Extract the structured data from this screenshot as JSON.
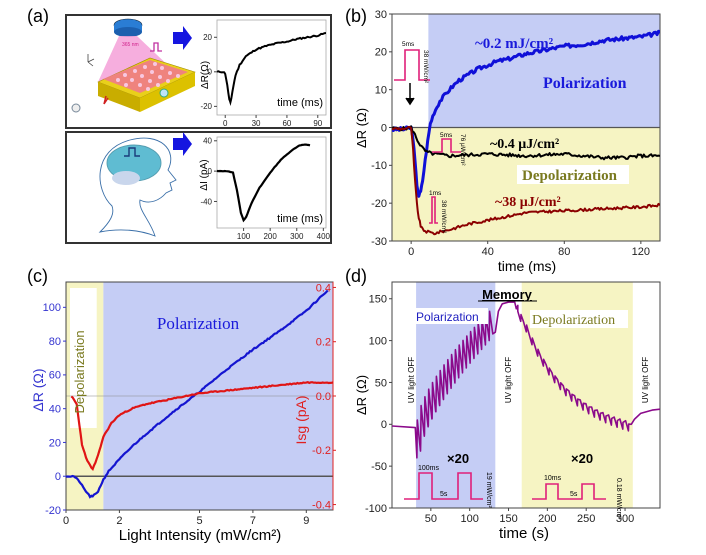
{
  "figure": {
    "panel_labels": [
      "(a)",
      "(b)",
      "(c)",
      "(d)"
    ]
  },
  "chart_data": [
    {
      "panel": "a-top",
      "type": "line",
      "title": "",
      "xlabel": "time (ms)",
      "ylabel": "ΔR(Ω)",
      "xlim": [
        -8,
        98
      ],
      "ylim": [
        -25,
        30
      ],
      "xticks": [
        0,
        30,
        60,
        90
      ],
      "yticks": [
        -20,
        0,
        20
      ],
      "illustration": "device-with-uv-pulse",
      "illustration_label": "365 nm",
      "series": [
        {
          "name": "response",
          "color": "#000000",
          "x": [
            -8,
            -2,
            0,
            2,
            4,
            5,
            6,
            8,
            10,
            14,
            20,
            30,
            40,
            50,
            60,
            70,
            80,
            90,
            98
          ],
          "y": [
            0,
            0,
            -1,
            -8,
            -16,
            -18,
            -15,
            -8,
            -2,
            4,
            9,
            13,
            15,
            16.5,
            17.5,
            19,
            20,
            21,
            22.5
          ]
        }
      ]
    },
    {
      "panel": "a-bottom",
      "type": "line",
      "title": "",
      "xlabel": "time (ms)",
      "ylabel": "ΔI (pA)",
      "xlim": [
        0,
        410
      ],
      "ylim": [
        -75,
        45
      ],
      "xticks": [
        100,
        200,
        300,
        400
      ],
      "yticks": [
        -40,
        0,
        40
      ],
      "illustration": "human-head-brain-pulse",
      "series": [
        {
          "name": "response",
          "color": "#000000",
          "x": [
            0,
            40,
            60,
            75,
            90,
            100,
            110,
            130,
            160,
            200,
            240,
            280,
            310,
            330,
            350
          ],
          "y": [
            0,
            0,
            -2,
            -25,
            -55,
            -65,
            -60,
            -42,
            -22,
            -2,
            15,
            27,
            34,
            35,
            34
          ]
        }
      ]
    },
    {
      "panel": "b",
      "type": "line",
      "title": "",
      "xlabel": "time (ms)",
      "ylabel": "ΔR (Ω)",
      "xlim": [
        -10,
        130
      ],
      "ylim": [
        -30,
        30
      ],
      "xticks": [
        0,
        40,
        80,
        120
      ],
      "yticks": [
        -30,
        -20,
        -10,
        0,
        10,
        20,
        30
      ],
      "regions": [
        {
          "label": "Polarization",
          "color": "#c5cdf5",
          "x_from": 9,
          "y_from": 0,
          "y_to": 30
        },
        {
          "label": "Depolarization",
          "color": "#f6f4c3",
          "y_from": -30,
          "y_to": 0
        }
      ],
      "annotations": [
        {
          "text": "~0.2 mJ/cm²",
          "color": "#1a1adb"
        },
        {
          "text": "Polarization",
          "color": "#1a1adb"
        },
        {
          "text": "~0.4 μJ/cm²",
          "color": "#000000"
        },
        {
          "text": "Depolarization",
          "color": "#7a7a20"
        },
        {
          "text": "~38 μJ/cm²",
          "color": "#8b0000"
        }
      ],
      "pulses": [
        {
          "width": "5ms",
          "intensity": "38 mW/cm²"
        },
        {
          "width": "5ms",
          "intensity": "76 μW/cm²"
        },
        {
          "width": "1ms",
          "intensity": "38 mW/cm²"
        }
      ],
      "series": [
        {
          "name": "~0.2 mJ/cm²",
          "color": "#1010d8",
          "x": [
            -10,
            -4,
            0,
            1,
            2,
            3,
            4,
            5,
            6,
            8,
            10,
            12,
            15,
            20,
            25,
            30,
            35,
            40,
            45,
            50,
            60,
            70,
            80,
            90,
            100,
            110,
            120,
            130
          ],
          "y": [
            -0.5,
            -0.5,
            0,
            -3,
            -9,
            -15,
            -18,
            -17,
            -14,
            -6,
            1,
            4,
            7,
            10,
            12.5,
            14,
            15.5,
            16.5,
            17.5,
            18,
            19.5,
            20.5,
            21.5,
            22,
            23,
            23.5,
            24,
            25
          ]
        },
        {
          "name": "~0.4 μJ/cm²",
          "color": "#000000",
          "x": [
            -10,
            -4,
            0,
            2,
            4,
            6,
            8,
            12,
            20,
            40,
            60,
            80,
            100,
            110,
            120,
            130
          ],
          "y": [
            -0.3,
            -0.3,
            0,
            -2,
            -4,
            -5.5,
            -6.5,
            -7,
            -7.5,
            -7,
            -7.5,
            -7,
            -8,
            -8,
            -7.5,
            -7.5
          ]
        },
        {
          "name": "~38 μJ/cm²",
          "color": "#8b0000",
          "x": [
            -10,
            -4,
            0,
            1,
            2,
            3,
            4,
            5,
            6,
            8,
            12,
            20,
            30,
            40,
            50,
            60,
            80,
            100,
            120,
            130
          ],
          "y": [
            -0.3,
            -0.3,
            0,
            -6,
            -14,
            -20,
            -24,
            -26,
            -27,
            -27.5,
            -28,
            -27,
            -25.5,
            -24.5,
            -23.5,
            -22.5,
            -22,
            -21.5,
            -21,
            -20.5
          ]
        }
      ]
    },
    {
      "panel": "c",
      "type": "line",
      "title": "",
      "xlabel": "Light Intensity (mW/cm²)",
      "ylabel": "ΔR (Ω)",
      "y2label": "Isg (pA)",
      "xlim": [
        0,
        10
      ],
      "ylim": [
        -20,
        115
      ],
      "y2lim": [
        -0.42,
        0.42
      ],
      "xticks": [
        0,
        2,
        5,
        7,
        9
      ],
      "yticks": [
        -20,
        0,
        20,
        40,
        60,
        80,
        100
      ],
      "y2ticks": [
        -0.4,
        -0.2,
        0.0,
        0.2,
        0.4
      ],
      "regions": [
        {
          "label": "Depolarization",
          "color": "#f6f4c3",
          "x_from": 0,
          "x_to": 1.4
        },
        {
          "label": "Polarization",
          "color": "#c5cdf5",
          "x_from": 1.4,
          "x_to": 10
        }
      ],
      "series": [
        {
          "name": "ΔR",
          "axis": "left",
          "color": "#1515d0",
          "x": [
            0,
            0.3,
            0.5,
            0.7,
            0.9,
            1.0,
            1.2,
            1.4,
            1.6,
            2,
            2.5,
            3,
            4,
            5,
            6,
            7,
            8,
            9,
            9.8
          ],
          "y": [
            0,
            0,
            -3,
            -8,
            -12,
            -12,
            -9,
            -2,
            3,
            10,
            18,
            25,
            38,
            50,
            63,
            75,
            86,
            98,
            110
          ]
        },
        {
          "name": "Isg",
          "axis": "right",
          "color": "#e01515",
          "x": [
            0.2,
            0.4,
            0.6,
            0.8,
            1.0,
            1.2,
            1.4,
            1.7,
            2,
            2.5,
            3,
            4,
            5,
            6,
            7,
            8,
            9,
            10
          ],
          "y": [
            0.0,
            -0.03,
            -0.18,
            -0.24,
            -0.27,
            -0.22,
            -0.15,
            -0.1,
            -0.07,
            -0.045,
            -0.03,
            -0.01,
            0.01,
            0.02,
            0.03,
            0.04,
            0.05,
            0.05
          ]
        }
      ]
    },
    {
      "panel": "d",
      "type": "line",
      "title": "Memory",
      "xlabel": "time (s)",
      "ylabel": "ΔR (Ω)",
      "xlim": [
        0,
        345
      ],
      "ylim": [
        -100,
        170
      ],
      "xticks": [
        50,
        100,
        150,
        200,
        250,
        300
      ],
      "yticks": [
        -100,
        -50,
        0,
        50,
        100,
        150
      ],
      "regions": [
        {
          "label": "Polarization",
          "color": "#c5cdf5",
          "x_from": 31,
          "x_to": 133
        },
        {
          "label": "Depolarization",
          "color": "#f6f4c3",
          "x_from": 167,
          "x_to": 310
        }
      ],
      "annotations": [
        {
          "text": "UV light OFF"
        },
        {
          "text": "UV light OFF"
        },
        {
          "text": "UV light OFF"
        },
        {
          "text": "×20"
        },
        {
          "text": "×20"
        }
      ],
      "pulses": [
        {
          "width": "100ms",
          "period": "5s",
          "intensity": "19 mW/cm²"
        },
        {
          "width": "10ms",
          "period": "5s",
          "intensity": "0.18 mW/cm²"
        }
      ],
      "series": [
        {
          "name": "ΔR",
          "color": "#8b0a8b",
          "polarization_pulses": 20,
          "depolarization_pulses": 20,
          "x_keypoints": [
            0,
            30,
            33,
            60,
            90,
            130,
            140,
            150,
            160,
            170,
            200,
            250,
            308,
            320,
            345
          ],
          "y_keypoints": [
            -2,
            -5,
            -45,
            40,
            80,
            110,
            140,
            146,
            145,
            125,
            90,
            45,
            2,
            15,
            18
          ]
        }
      ]
    }
  ]
}
